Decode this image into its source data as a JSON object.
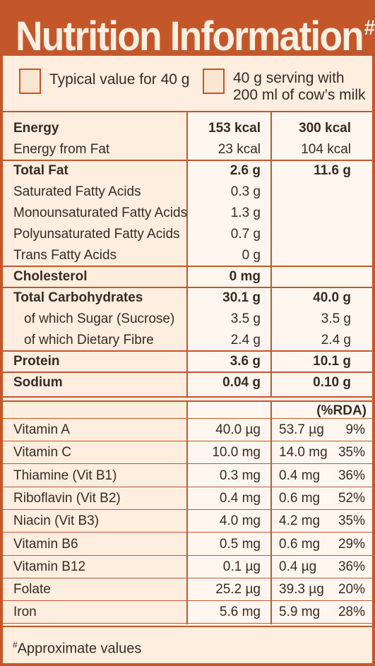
{
  "title": "Nutrition Information",
  "title_mark": "#",
  "legend": {
    "col1": "Typical value for 40 g",
    "col2_line1": "40 g serving with",
    "col2_line2": "200 ml of cow’s milk"
  },
  "rows": [
    {
      "label": "Energy",
      "v1": "153 kcal",
      "v2": "300 kcal",
      "bold": true
    },
    {
      "label": "Energy from Fat",
      "v1": "23 kcal",
      "v2": "104 kcal",
      "bold": false
    },
    {
      "label": "Total Fat",
      "v1": "2.6 g",
      "v2": "11.6 g",
      "bold": true
    },
    {
      "label": "Saturated Fatty Acids",
      "v1": "0.3 g",
      "v2": "",
      "bold": false
    },
    {
      "label": "Monounsaturated Fatty Acids",
      "v1": "1.3 g",
      "v2": "",
      "bold": false
    },
    {
      "label": "Polyunsaturated Fatty Acids",
      "v1": "0.7 g",
      "v2": "",
      "bold": false
    },
    {
      "label": "Trans Fatty Acids",
      "v1": "0 g",
      "v2": "",
      "bold": false
    },
    {
      "label": "Cholesterol",
      "v1": "0 mg",
      "v2": "",
      "bold": true
    },
    {
      "label": "Total Carbohydrates",
      "v1": "30.1 g",
      "v2": "40.0 g",
      "bold": true
    },
    {
      "label": "of which Sugar (Sucrose)",
      "v1": "3.5 g",
      "v2": "3.5 g",
      "bold": false,
      "indent": true
    },
    {
      "label": "of which Dietary Fibre",
      "v1": "2.4 g",
      "v2": "2.4 g",
      "bold": false,
      "indent": true
    },
    {
      "label": "Protein",
      "v1": "3.6 g",
      "v2": "10.1 g",
      "bold": true
    },
    {
      "label": "Sodium",
      "v1": "0.04 g",
      "v2": "0.10 g",
      "bold": true
    }
  ],
  "rda_header": "(%RDA)",
  "vitamins": [
    {
      "label": "Vitamin A",
      "v1": "40.0 µg",
      "v2": "53.7 µg",
      "rda": "9%"
    },
    {
      "label": "Vitamin C",
      "v1": "10.0 mg",
      "v2": "14.0 mg",
      "rda": "35%"
    },
    {
      "label": "Thiamine (Vit B1)",
      "v1": "0.3 mg",
      "v2": "0.4 mg",
      "rda": "36%"
    },
    {
      "label": "Riboflavin (Vit B2)",
      "v1": "0.4 mg",
      "v2": "0.6 mg",
      "rda": "52%"
    },
    {
      "label": "Niacin (Vit B3)",
      "v1": "4.0 mg",
      "v2": "4.2 mg",
      "rda": "35%"
    },
    {
      "label": "Vitamin B6",
      "v1": "0.5 mg",
      "v2": "0.6 mg",
      "rda": "29%"
    },
    {
      "label": "Vitamin B12",
      "v1": "0.1 µg",
      "v2": "0.4 µg",
      "rda": "36%"
    },
    {
      "label": "Folate",
      "v1": "25.2 µg",
      "v2": "39.3 µg",
      "rda": "20%"
    },
    {
      "label": "Iron",
      "v1": "5.6 mg",
      "v2": "5.9 mg",
      "rda": "28%"
    }
  ],
  "footnote_mark": "#",
  "footnote": "Approximate values"
}
